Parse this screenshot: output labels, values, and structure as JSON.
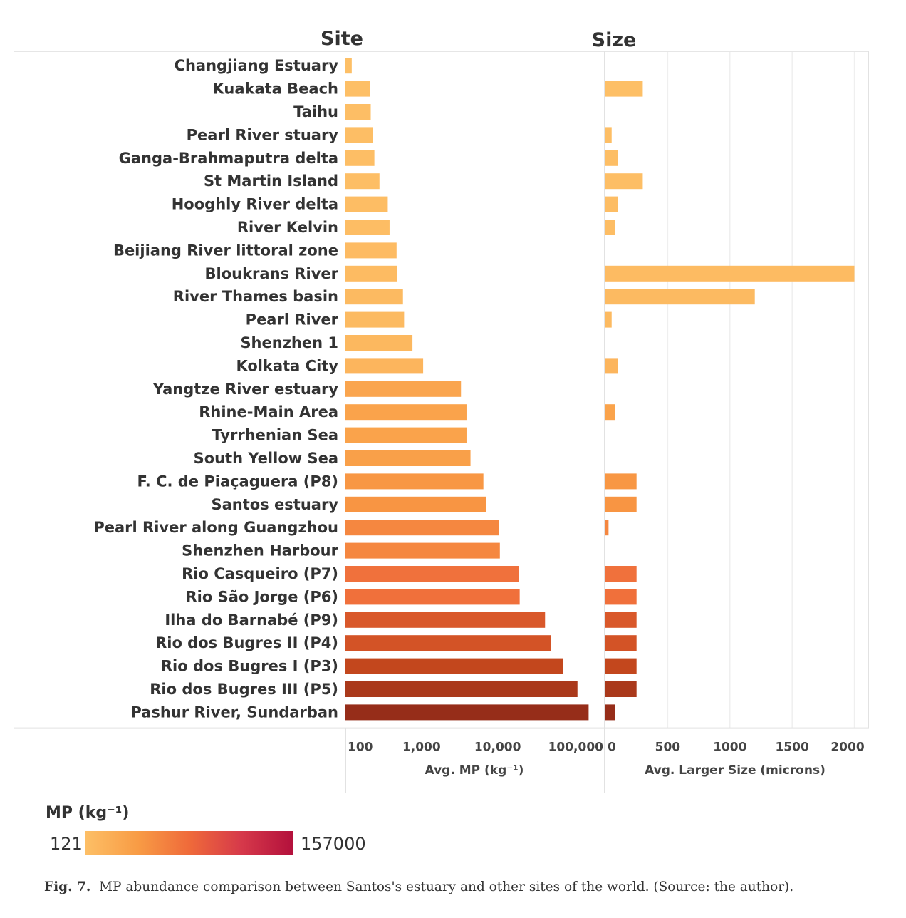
{
  "chart_data": {
    "type": "bar",
    "headers": {
      "site": "Site",
      "size": "Size"
    },
    "categories": [
      "Changjiang Estuary",
      "Kuakata Beach",
      "Taihu",
      "Pearl River stuary",
      "Ganga-Brahmaputra delta",
      "St Martin Island",
      "Hooghly River delta",
      "River Kelvin",
      "Beijiang River littoral zone",
      "Bloukrans River",
      "River Thames basin",
      "Pearl River",
      "Shenzhen 1",
      "Kolkata City",
      "Yangtze River estuary",
      "Rhine-Main Area",
      "Tyrrhenian Sea",
      "South Yellow Sea",
      "F. C. de Piaçaguera (P8)",
      "Santos estuary",
      "Pearl River along Guangzhou",
      "Shenzhen Harbour",
      "Rio Casqueiro (P7)",
      "Rio São Jorge (P6)",
      "Ilha do Barnabé (P9)",
      "Rio dos Bugres II (P4)",
      "Rio dos Bugres I (P3)",
      "Rio dos Bugres III (P5)",
      "Pashur River, Sundarban"
    ],
    "series": [
      {
        "name": "Avg. MP (kg⁻¹)",
        "scale": "log",
        "values": [
          121,
          210,
          215,
          230,
          240,
          280,
          360,
          380,
          470,
          480,
          570,
          590,
          760,
          1050,
          3300,
          3900,
          3900,
          4400,
          6500,
          7000,
          10500,
          10700,
          19000,
          19500,
          42000,
          50000,
          72000,
          112000,
          157000
        ]
      },
      {
        "name": "Avg. Larger Size (microns)",
        "scale": "linear",
        "values": [
          0,
          300,
          0,
          50,
          100,
          300,
          100,
          75,
          0,
          2000,
          1200,
          50,
          0,
          100,
          0,
          75,
          0,
          0,
          250,
          250,
          25,
          0,
          250,
          250,
          250,
          250,
          250,
          250,
          75
        ]
      }
    ],
    "axes": {
      "mp": {
        "xlabel": "Avg. MP (kg⁻¹)",
        "ticks": [
          100,
          1000,
          10000,
          100000
        ],
        "tick_labels": [
          "100",
          "1,000",
          "10,000",
          "100,000"
        ],
        "xlim": [
          100,
          250000
        ]
      },
      "size": {
        "xlabel": "Avg. Larger Size (microns)",
        "ticks": [
          0,
          500,
          1000,
          1500,
          2000
        ],
        "tick_labels": [
          "0",
          "500",
          "1000",
          "1500",
          "2000"
        ],
        "xlim": [
          0,
          2100
        ]
      }
    },
    "color_legend": {
      "title": "MP (kg⁻¹)",
      "min": "121",
      "max": "157000"
    },
    "grid": true
  },
  "caption": {
    "label": "Fig. 7.",
    "text": "MP abundance comparison between Santos's estuary and other sites of the world. (Source: the author)."
  }
}
